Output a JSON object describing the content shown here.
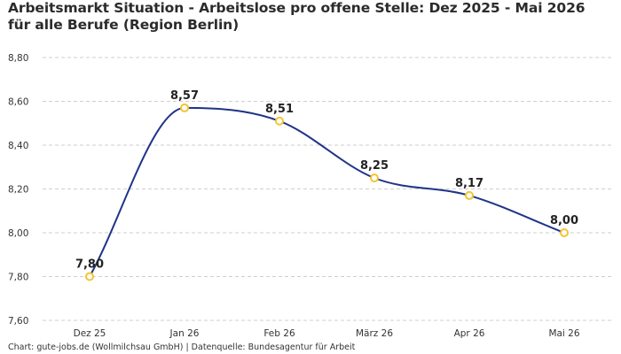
{
  "title": "Arbeitsmarkt Situation - Arbeitslose pro offene Stelle: Dez 2025 - Mai 2026 für alle Berufe (Region Berlin)",
  "footer": "Chart: gute-jobs.de (Wollmilchsau GmbH) | Datenquelle: Bundesagentur für Arbeit",
  "colors": {
    "line": "#1f3388",
    "marker_stroke": "#f2c531",
    "marker_fill": "#ffffff",
    "grid": "#cfcfcf"
  },
  "chart_data": {
    "type": "line",
    "title": "Arbeitsmarkt Situation - Arbeitslose pro offene Stelle: Dez 2025 - Mai 2026 für alle Berufe (Region Berlin)",
    "categories": [
      "Dez 25",
      "Jan 26",
      "Feb 26",
      "März 26",
      "Apr 26",
      "Mai 26"
    ],
    "values": [
      7.8,
      8.57,
      8.51,
      8.25,
      8.17,
      8.0
    ],
    "data_labels": [
      "7,80",
      "8,57",
      "8,51",
      "8,25",
      "8,17",
      "8,00"
    ],
    "ylim": [
      7.6,
      8.8
    ],
    "yticks": [
      7.6,
      7.8,
      8.0,
      8.2,
      8.4,
      8.6,
      8.8
    ],
    "ytick_labels": [
      "7,60",
      "7,80",
      "8,00",
      "8,20",
      "8,40",
      "8,60",
      "8,80"
    ],
    "xlabel": "",
    "ylabel": "",
    "grid": "horizontal dashed",
    "legend": "none"
  }
}
